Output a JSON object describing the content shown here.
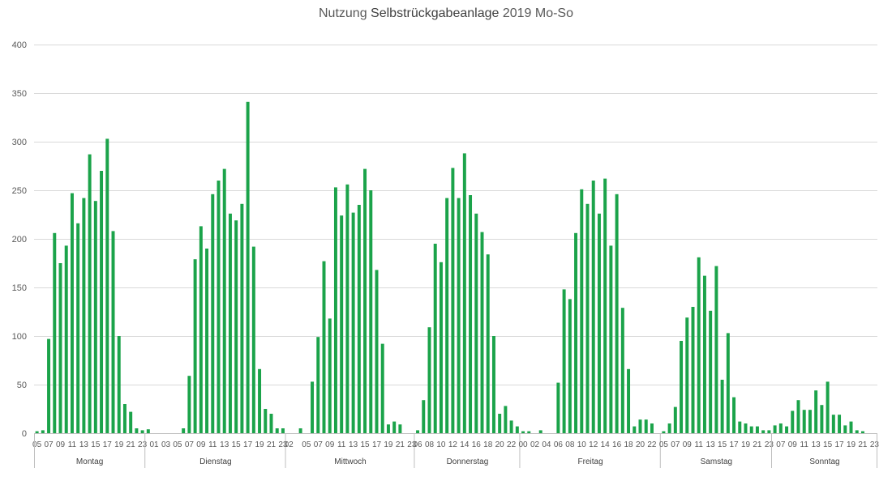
{
  "chart_data": {
    "type": "bar",
    "title_part1": "Nutzung ",
    "title_part2": "Selbstrückgabeanlage",
    "title_part3": " 2019 Mo-So",
    "ylim": [
      0,
      400
    ],
    "yticks": [
      0,
      50,
      100,
      150,
      200,
      250,
      300,
      350,
      400
    ],
    "grid": true,
    "bar_color": "#1BA34A",
    "days": [
      {
        "name": "Montag",
        "hours": [
          "05",
          "06",
          "07",
          "08",
          "09",
          "10",
          "11",
          "12",
          "13",
          "14",
          "15",
          "16",
          "17",
          "18",
          "19",
          "20",
          "21",
          "22",
          "23"
        ],
        "values": [
          2,
          3,
          97,
          206,
          175,
          193,
          247,
          216,
          242,
          287,
          239,
          270,
          303,
          208,
          100,
          30,
          22,
          5,
          3
        ],
        "labels": [
          "05",
          "07",
          "09",
          "11",
          "13",
          "15",
          "17",
          "19",
          "21",
          "23"
        ]
      },
      {
        "name": "Dienstag",
        "hours": [
          "00",
          "01",
          "02",
          "03",
          "04",
          "05",
          "06",
          "07",
          "08",
          "09",
          "10",
          "11",
          "12",
          "13",
          "14",
          "15",
          "16",
          "17",
          "18",
          "19",
          "20",
          "21",
          "22",
          "23"
        ],
        "values": [
          4,
          0,
          0,
          0,
          0,
          0,
          5,
          59,
          179,
          213,
          190,
          246,
          260,
          272,
          226,
          219,
          236,
          341,
          192,
          66,
          25,
          20,
          5,
          5
        ],
        "labels": [
          "01",
          "03",
          "05",
          "07",
          "09",
          "11",
          "13",
          "15",
          "17",
          "19",
          "21",
          "23"
        ]
      },
      {
        "name": "Mittwoch",
        "hours": [
          "02",
          "03",
          "04",
          "05",
          "06",
          "07",
          "08",
          "09",
          "10",
          "11",
          "12",
          "13",
          "14",
          "15",
          "16",
          "17",
          "18",
          "19",
          "20",
          "21",
          "22",
          "23"
        ],
        "values": [
          0,
          0,
          5,
          0,
          53,
          99,
          177,
          118,
          253,
          224,
          256,
          227,
          235,
          272,
          250,
          168,
          92,
          9,
          12,
          9,
          0,
          0
        ],
        "labels": [
          "02",
          "05",
          "07",
          "09",
          "11",
          "13",
          "15",
          "17",
          "19",
          "21",
          "23"
        ]
      },
      {
        "name": "Donnerstag",
        "hours": [
          "06",
          "07",
          "08",
          "09",
          "10",
          "11",
          "12",
          "13",
          "14",
          "15",
          "16",
          "17",
          "18",
          "19",
          "20",
          "21",
          "22",
          "23"
        ],
        "values": [
          3,
          34,
          109,
          195,
          176,
          242,
          273,
          242,
          288,
          245,
          226,
          207,
          184,
          100,
          20,
          28,
          13,
          7
        ],
        "labels": [
          "06",
          "08",
          "10",
          "12",
          "14",
          "16",
          "18",
          "20",
          "22"
        ]
      },
      {
        "name": "Freitag",
        "hours": [
          "00",
          "01",
          "02",
          "03",
          "04",
          "05",
          "06",
          "07",
          "08",
          "09",
          "10",
          "11",
          "12",
          "13",
          "14",
          "15",
          "16",
          "17",
          "18",
          "19",
          "20",
          "21",
          "22",
          "23"
        ],
        "values": [
          2,
          2,
          0,
          3,
          0,
          0,
          52,
          148,
          138,
          206,
          251,
          236,
          260,
          226,
          262,
          193,
          246,
          129,
          66,
          7,
          14,
          14,
          10,
          0
        ],
        "labels": [
          "00",
          "02",
          "04",
          "06",
          "08",
          "10",
          "12",
          "14",
          "16",
          "18",
          "20",
          "22"
        ]
      },
      {
        "name": "Samstag",
        "hours": [
          "05",
          "06",
          "07",
          "08",
          "09",
          "10",
          "11",
          "12",
          "13",
          "14",
          "15",
          "16",
          "17",
          "18",
          "19",
          "20",
          "21",
          "22",
          "23"
        ],
        "values": [
          2,
          10,
          27,
          95,
          119,
          130,
          181,
          162,
          126,
          172,
          55,
          103,
          37,
          12,
          10,
          7,
          7,
          3,
          3
        ],
        "labels": [
          "05",
          "07",
          "09",
          "11",
          "13",
          "15",
          "17",
          "19",
          "21",
          "23"
        ]
      },
      {
        "name": "Sonntag",
        "hours": [
          "06",
          "07",
          "08",
          "09",
          "10",
          "11",
          "12",
          "13",
          "14",
          "15",
          "16",
          "17",
          "18",
          "19",
          "20",
          "21",
          "22",
          "23"
        ],
        "values": [
          8,
          10,
          7,
          23,
          34,
          24,
          24,
          44,
          29,
          53,
          19,
          19,
          8,
          12,
          3,
          2,
          0,
          0
        ],
        "labels": [
          "07",
          "09",
          "11",
          "13",
          "15",
          "17",
          "19",
          "21",
          "23"
        ]
      }
    ]
  }
}
